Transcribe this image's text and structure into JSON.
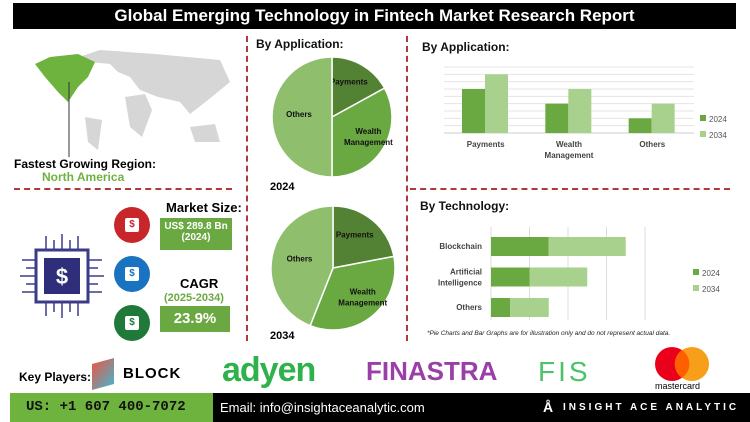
{
  "title": "Global Emerging Technology in Fintech Market Research Report",
  "region": {
    "label": "Fastest Growing Region:",
    "value": "North America"
  },
  "market_size": {
    "label": "Market Size:",
    "value": "US$ 289.8 Bn",
    "year": "(2024)"
  },
  "cagr": {
    "label": "CAGR",
    "period": "(2025-2034)",
    "value": "23.9%"
  },
  "colors": {
    "dark_green": "#548235",
    "mid_green": "#6aa842",
    "light_green": "#a9d18e",
    "pie_light": "#8fbf6d",
    "divider": "#b03a3a"
  },
  "chart_data": [
    {
      "type": "pie",
      "title": "By Application:",
      "year_label": "2024",
      "categories": [
        "Payments",
        "Wealth Management",
        "Others"
      ],
      "values": [
        17,
        33,
        50
      ]
    },
    {
      "type": "pie",
      "year_label": "2034",
      "categories": [
        "Payments",
        "Wealth Management",
        "Others"
      ],
      "values": [
        22,
        34,
        44
      ]
    },
    {
      "type": "bar",
      "title": "By Application:",
      "categories": [
        "Payments",
        "Wealth Management",
        "Others"
      ],
      "series": [
        {
          "name": "2024",
          "values": [
            6,
            4,
            2
          ]
        },
        {
          "name": "2034",
          "values": [
            8,
            6,
            4
          ]
        }
      ],
      "ylim": [
        0,
        9
      ],
      "grid": true,
      "legend": "right"
    },
    {
      "type": "bar",
      "orientation": "horizontal",
      "stacked": true,
      "title": "By Technology:",
      "categories": [
        "Blockchain",
        "Artificial Intelligence",
        "Others"
      ],
      "series": [
        {
          "name": "2024",
          "values": [
            1.5,
            1.0,
            0.5
          ]
        },
        {
          "name": "2034",
          "values": [
            2.0,
            1.5,
            1.0
          ]
        }
      ],
      "xlim": [
        0,
        4
      ],
      "grid": true,
      "legend": "right"
    }
  ],
  "note": "*Pie Charts and Bar Graphs are for illustration only and do not represent actual data.",
  "key_players": {
    "label": "Key Players:",
    "logos": [
      "BLOCK",
      "adyen",
      "FINASTRA",
      "FIS",
      "mastercard"
    ]
  },
  "footer": {
    "phone": "US: +1 607 400-7072",
    "email": "Email: info@insightaceanalytic.com",
    "brand": "INSIGHT ACE ANALYTIC"
  }
}
